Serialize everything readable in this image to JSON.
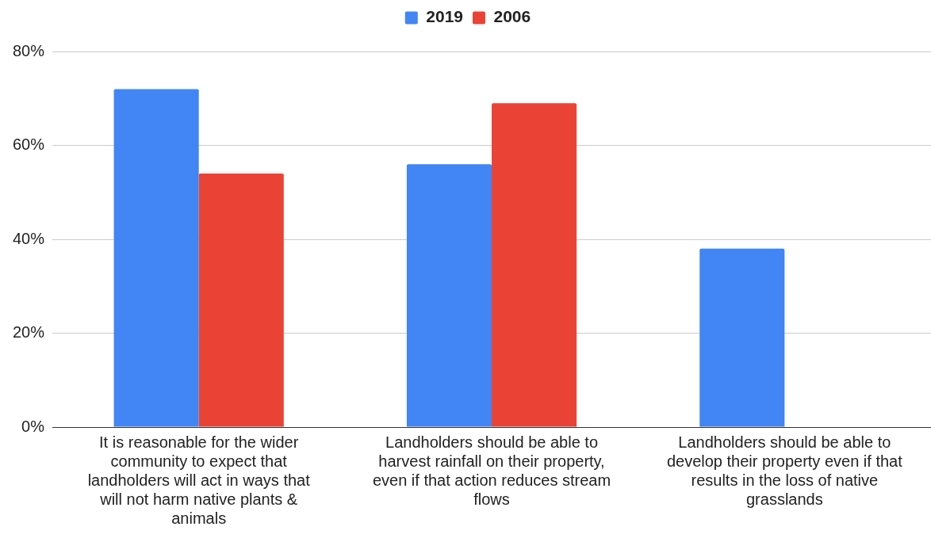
{
  "chart_data": {
    "type": "bar",
    "categories": [
      "It is reasonable for the wider community to expect that landholders will act in ways that will not harm native plants & animals",
      "Landholders should be able to harvest rainfall on their property, even if that action reduces stream flows",
      "Landholders should be able to develop their property even if that results in the loss of native grasslands"
    ],
    "series": [
      {
        "name": "2019",
        "color": "#4285f4",
        "values": [
          72,
          56,
          38
        ]
      },
      {
        "name": "2006",
        "color": "#ea4335",
        "values": [
          54,
          69,
          null
        ]
      }
    ],
    "ylim": [
      0,
      80
    ],
    "yticks": [
      {
        "value": 0,
        "label": "0%"
      },
      {
        "value": 20,
        "label": "20%"
      },
      {
        "value": 40,
        "label": "40%"
      },
      {
        "value": 60,
        "label": "60%"
      },
      {
        "value": 80,
        "label": "80%"
      }
    ],
    "grid": "y",
    "legend": "top"
  }
}
